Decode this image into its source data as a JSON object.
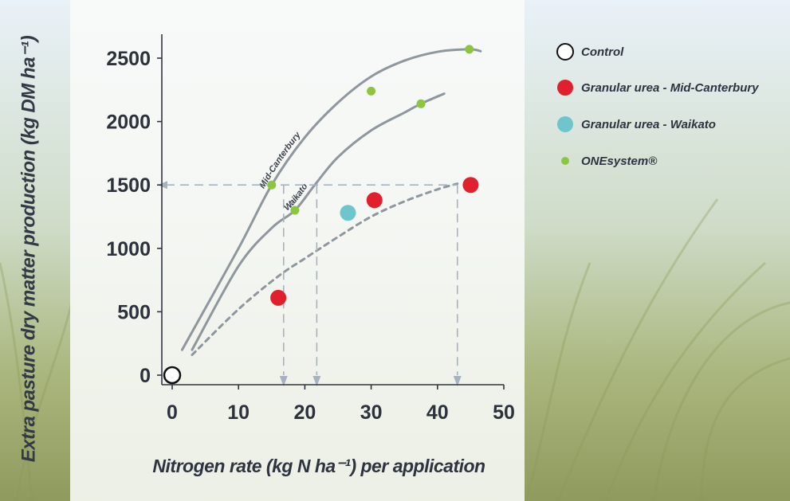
{
  "colors": {
    "axis": "#2f3540",
    "curve": "#8e969e",
    "dashed_ref": "#a6b2c0",
    "control": "#ffffff",
    "granular_mid_canterbury": "#e0202c",
    "granular_waikato": "#6ec5cc",
    "onesystem": "#8cc63f",
    "panel": "#f7f9f8"
  },
  "chart_data": {
    "type": "scatter",
    "title": "",
    "xlabel": "Nitrogen rate (kg N ha⁻¹) per application",
    "ylabel": "Extra pasture dry matter production (kg DM ha⁻¹)",
    "xlim": [
      0,
      50
    ],
    "ylim": [
      0,
      2500
    ],
    "x_ticks": [
      0,
      10,
      20,
      30,
      40,
      50
    ],
    "y_ticks": [
      0,
      500,
      1000,
      1500,
      2000,
      2500
    ],
    "grid": false,
    "legend_position": "right",
    "series": [
      {
        "name": "Control",
        "key": "control",
        "points": [
          [
            0,
            0
          ]
        ]
      },
      {
        "name": "Granular urea - Mid-Canterbury",
        "key": "granular_mid_canterbury",
        "points": [
          [
            16,
            610
          ],
          [
            30.5,
            1380
          ],
          [
            45,
            1500
          ]
        ]
      },
      {
        "name": "Granular urea - Waikato",
        "key": "granular_waikato",
        "points": [
          [
            26.5,
            1280
          ]
        ]
      },
      {
        "name": "ONEsystem®",
        "key": "onesystem",
        "points": [
          [
            15,
            1500
          ],
          [
            18.5,
            1300
          ],
          [
            30,
            2240
          ],
          [
            37.5,
            2140
          ],
          [
            44.8,
            2570
          ]
        ]
      }
    ],
    "curves": [
      {
        "label": "Mid-Canterbury",
        "style": "solid",
        "points": [
          [
            1.5,
            200
          ],
          [
            10,
            1000
          ],
          [
            15,
            1500
          ],
          [
            20,
            1875
          ],
          [
            25,
            2150
          ],
          [
            30,
            2355
          ],
          [
            35,
            2480
          ],
          [
            40,
            2550
          ],
          [
            44.8,
            2570
          ],
          [
            46.5,
            2555
          ]
        ]
      },
      {
        "label": "Waikato",
        "style": "solid",
        "points": [
          [
            3,
            200
          ],
          [
            10,
            860
          ],
          [
            15,
            1160
          ],
          [
            18.5,
            1300
          ],
          [
            21.5,
            1500
          ],
          [
            25,
            1720
          ],
          [
            30,
            1930
          ],
          [
            35,
            2070
          ],
          [
            37.5,
            2140
          ],
          [
            41,
            2220
          ]
        ]
      },
      {
        "label": "",
        "style": "dashed",
        "points": [
          [
            3,
            160
          ],
          [
            10,
            520
          ],
          [
            16,
            780
          ],
          [
            20,
            920
          ],
          [
            25,
            1090
          ],
          [
            30,
            1250
          ],
          [
            35,
            1370
          ],
          [
            40,
            1465
          ],
          [
            43,
            1510
          ]
        ]
      }
    ],
    "reference_lines": {
      "y": 1500,
      "x_drops": [
        16.8,
        21.8,
        43
      ]
    }
  }
}
